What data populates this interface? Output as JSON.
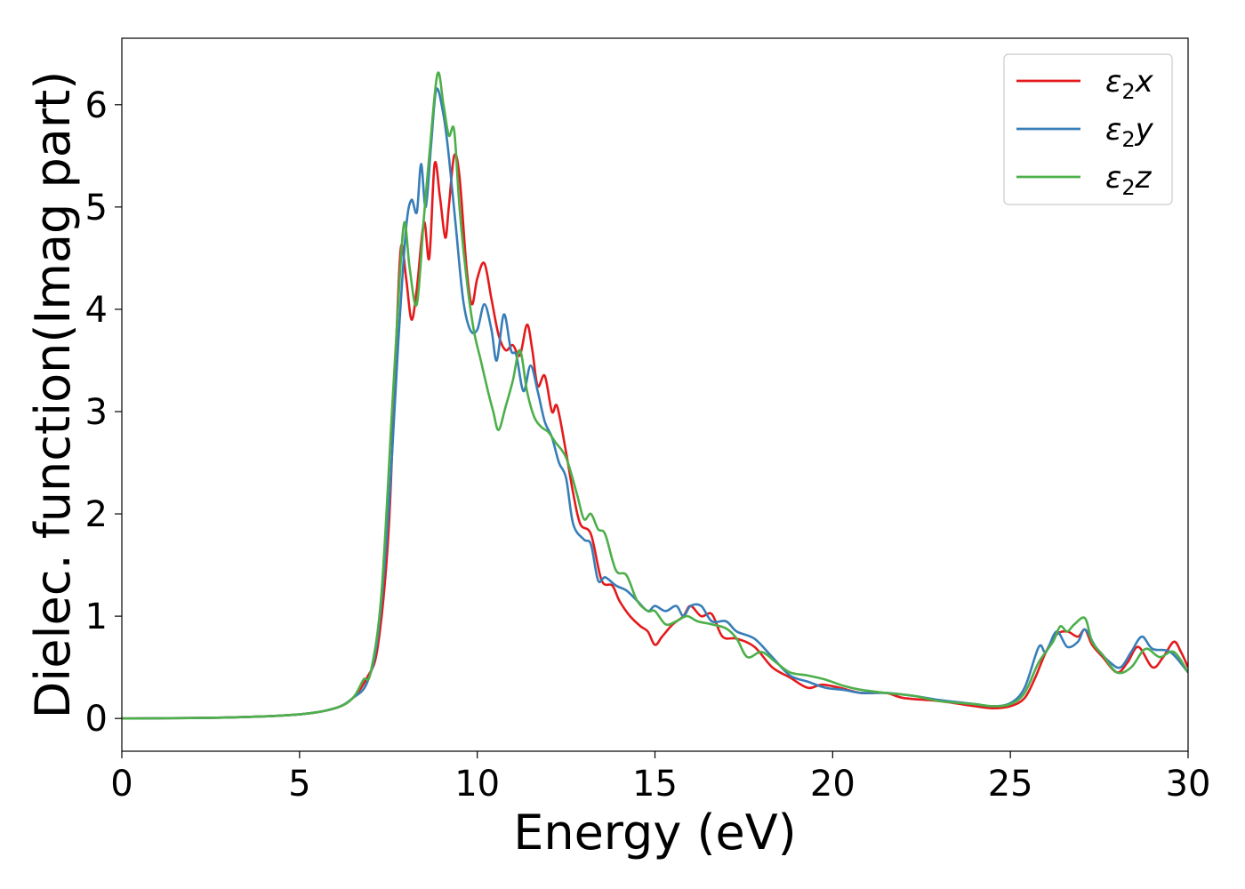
{
  "chart_data": {
    "type": "line",
    "xlabel": "Energy (eV)",
    "ylabel": "Dielec. function(Imag part)",
    "xlim": [
      0,
      30
    ],
    "ylim": [
      -0.32,
      6.65
    ],
    "xticks": [
      0,
      5,
      10,
      15,
      20,
      25,
      30
    ],
    "yticks": [
      0,
      1,
      2,
      3,
      4,
      5,
      6
    ],
    "legend_position": "top-right",
    "grid": false,
    "series": [
      {
        "name": "ε2x",
        "legend_base": "ε",
        "legend_sub": "2",
        "legend_suffix": "x",
        "color": "#e41a1c",
        "points": [
          [
            0,
            0
          ],
          [
            3,
            0.01
          ],
          [
            5,
            0.04
          ],
          [
            6,
            0.1
          ],
          [
            6.5,
            0.2
          ],
          [
            6.9,
            0.4
          ],
          [
            7.2,
            0.7
          ],
          [
            7.5,
            1.8
          ],
          [
            7.7,
            3.5
          ],
          [
            7.85,
            4.6
          ],
          [
            8.0,
            4.3
          ],
          [
            8.15,
            3.9
          ],
          [
            8.3,
            4.2
          ],
          [
            8.5,
            4.85
          ],
          [
            8.65,
            4.5
          ],
          [
            8.8,
            5.42
          ],
          [
            8.95,
            5.1
          ],
          [
            9.1,
            4.7
          ],
          [
            9.2,
            5.0
          ],
          [
            9.35,
            5.5
          ],
          [
            9.5,
            5.3
          ],
          [
            9.7,
            4.4
          ],
          [
            9.85,
            4.05
          ],
          [
            10.0,
            4.3
          ],
          [
            10.2,
            4.45
          ],
          [
            10.4,
            4.1
          ],
          [
            10.6,
            3.75
          ],
          [
            10.8,
            3.6
          ],
          [
            11.0,
            3.65
          ],
          [
            11.2,
            3.55
          ],
          [
            11.4,
            3.85
          ],
          [
            11.55,
            3.6
          ],
          [
            11.7,
            3.25
          ],
          [
            11.9,
            3.35
          ],
          [
            12.1,
            3.0
          ],
          [
            12.25,
            3.05
          ],
          [
            12.5,
            2.6
          ],
          [
            12.7,
            2.2
          ],
          [
            12.9,
            1.9
          ],
          [
            13.2,
            1.8
          ],
          [
            13.5,
            1.35
          ],
          [
            13.8,
            1.3
          ],
          [
            14.0,
            1.15
          ],
          [
            14.3,
            1.0
          ],
          [
            14.6,
            0.9
          ],
          [
            14.8,
            0.85
          ],
          [
            15.0,
            0.72
          ],
          [
            15.2,
            0.8
          ],
          [
            15.5,
            0.92
          ],
          [
            15.8,
            1.0
          ],
          [
            16.0,
            1.1
          ],
          [
            16.3,
            1.0
          ],
          [
            16.6,
            1.02
          ],
          [
            16.9,
            0.8
          ],
          [
            17.3,
            0.78
          ],
          [
            17.8,
            0.7
          ],
          [
            18.3,
            0.5
          ],
          [
            18.8,
            0.4
          ],
          [
            19.3,
            0.3
          ],
          [
            19.7,
            0.33
          ],
          [
            20.2,
            0.3
          ],
          [
            20.8,
            0.25
          ],
          [
            21.5,
            0.25
          ],
          [
            22,
            0.2
          ],
          [
            23,
            0.17
          ],
          [
            24,
            0.12
          ],
          [
            24.5,
            0.1
          ],
          [
            25,
            0.12
          ],
          [
            25.4,
            0.2
          ],
          [
            25.7,
            0.4
          ],
          [
            26.0,
            0.65
          ],
          [
            26.3,
            0.82
          ],
          [
            26.6,
            0.85
          ],
          [
            26.9,
            0.8
          ],
          [
            27.1,
            0.87
          ],
          [
            27.3,
            0.72
          ],
          [
            27.6,
            0.6
          ],
          [
            28.0,
            0.45
          ],
          [
            28.3,
            0.55
          ],
          [
            28.6,
            0.7
          ],
          [
            29.0,
            0.5
          ],
          [
            29.3,
            0.6
          ],
          [
            29.6,
            0.75
          ],
          [
            29.8,
            0.65
          ],
          [
            30,
            0.5
          ]
        ]
      },
      {
        "name": "ε2y",
        "legend_base": "ε",
        "legend_sub": "2",
        "legend_suffix": "y",
        "color": "#377eb8",
        "points": [
          [
            0,
            0
          ],
          [
            3,
            0.01
          ],
          [
            5,
            0.04
          ],
          [
            6,
            0.1
          ],
          [
            6.5,
            0.2
          ],
          [
            6.9,
            0.35
          ],
          [
            7.2,
            0.8
          ],
          [
            7.5,
            2.0
          ],
          [
            7.8,
            3.8
          ],
          [
            8.0,
            4.8
          ],
          [
            8.15,
            5.07
          ],
          [
            8.3,
            4.95
          ],
          [
            8.42,
            5.42
          ],
          [
            8.55,
            5.0
          ],
          [
            8.7,
            5.6
          ],
          [
            8.85,
            6.15
          ],
          [
            9.05,
            5.9
          ],
          [
            9.2,
            5.5
          ],
          [
            9.4,
            4.8
          ],
          [
            9.6,
            4.1
          ],
          [
            9.8,
            3.8
          ],
          [
            10.0,
            3.8
          ],
          [
            10.2,
            4.05
          ],
          [
            10.4,
            3.8
          ],
          [
            10.55,
            3.5
          ],
          [
            10.75,
            3.95
          ],
          [
            10.95,
            3.6
          ],
          [
            11.1,
            3.55
          ],
          [
            11.3,
            3.2
          ],
          [
            11.5,
            3.45
          ],
          [
            11.7,
            3.2
          ],
          [
            11.9,
            2.9
          ],
          [
            12.1,
            2.75
          ],
          [
            12.3,
            2.5
          ],
          [
            12.5,
            2.35
          ],
          [
            12.7,
            1.9
          ],
          [
            13.0,
            1.75
          ],
          [
            13.2,
            1.7
          ],
          [
            13.4,
            1.35
          ],
          [
            13.6,
            1.38
          ],
          [
            13.9,
            1.3
          ],
          [
            14.2,
            1.25
          ],
          [
            14.5,
            1.15
          ],
          [
            14.8,
            1.05
          ],
          [
            15.0,
            1.1
          ],
          [
            15.3,
            1.05
          ],
          [
            15.6,
            1.1
          ],
          [
            15.8,
            1.0
          ],
          [
            16.0,
            1.1
          ],
          [
            16.3,
            1.1
          ],
          [
            16.6,
            0.95
          ],
          [
            17.0,
            0.95
          ],
          [
            17.3,
            0.85
          ],
          [
            17.8,
            0.78
          ],
          [
            18.3,
            0.6
          ],
          [
            18.8,
            0.42
          ],
          [
            19.3,
            0.36
          ],
          [
            19.8,
            0.3
          ],
          [
            20.3,
            0.28
          ],
          [
            20.8,
            0.25
          ],
          [
            21.5,
            0.25
          ],
          [
            22.3,
            0.22
          ],
          [
            23,
            0.18
          ],
          [
            24,
            0.14
          ],
          [
            24.5,
            0.12
          ],
          [
            25,
            0.15
          ],
          [
            25.4,
            0.3
          ],
          [
            25.8,
            0.7
          ],
          [
            26.0,
            0.65
          ],
          [
            26.3,
            0.85
          ],
          [
            26.6,
            0.7
          ],
          [
            26.9,
            0.75
          ],
          [
            27.1,
            0.87
          ],
          [
            27.4,
            0.7
          ],
          [
            27.8,
            0.55
          ],
          [
            28.1,
            0.5
          ],
          [
            28.4,
            0.65
          ],
          [
            28.7,
            0.8
          ],
          [
            29.0,
            0.68
          ],
          [
            29.5,
            0.65
          ],
          [
            30,
            0.45
          ]
        ]
      },
      {
        "name": "ε2z",
        "legend_base": "ε",
        "legend_sub": "2",
        "legend_suffix": "z",
        "color": "#4daf4a",
        "points": [
          [
            0,
            0
          ],
          [
            3,
            0.01
          ],
          [
            5,
            0.04
          ],
          [
            6,
            0.1
          ],
          [
            6.5,
            0.2
          ],
          [
            6.8,
            0.38
          ],
          [
            7.0,
            0.45
          ],
          [
            7.3,
            1.2
          ],
          [
            7.6,
            3.0
          ],
          [
            7.8,
            4.2
          ],
          [
            7.95,
            4.85
          ],
          [
            8.1,
            4.4
          ],
          [
            8.3,
            4.05
          ],
          [
            8.5,
            4.9
          ],
          [
            8.65,
            5.5
          ],
          [
            8.88,
            6.3
          ],
          [
            9.05,
            6.0
          ],
          [
            9.2,
            5.7
          ],
          [
            9.35,
            5.75
          ],
          [
            9.5,
            5.0
          ],
          [
            9.7,
            4.3
          ],
          [
            9.9,
            3.8
          ],
          [
            10.1,
            3.5
          ],
          [
            10.3,
            3.2
          ],
          [
            10.45,
            3.0
          ],
          [
            10.6,
            2.82
          ],
          [
            10.8,
            3.05
          ],
          [
            11.0,
            3.3
          ],
          [
            11.2,
            3.6
          ],
          [
            11.4,
            3.2
          ],
          [
            11.6,
            2.95
          ],
          [
            11.8,
            2.85
          ],
          [
            12.0,
            2.8
          ],
          [
            12.2,
            2.7
          ],
          [
            12.5,
            2.55
          ],
          [
            12.8,
            2.2
          ],
          [
            13.0,
            1.95
          ],
          [
            13.2,
            2.0
          ],
          [
            13.4,
            1.85
          ],
          [
            13.6,
            1.8
          ],
          [
            13.9,
            1.45
          ],
          [
            14.2,
            1.4
          ],
          [
            14.5,
            1.15
          ],
          [
            14.8,
            1.05
          ],
          [
            15.0,
            1.05
          ],
          [
            15.3,
            0.92
          ],
          [
            15.6,
            0.95
          ],
          [
            15.9,
            1.0
          ],
          [
            16.2,
            0.95
          ],
          [
            16.6,
            0.92
          ],
          [
            17.0,
            0.88
          ],
          [
            17.3,
            0.78
          ],
          [
            17.6,
            0.6
          ],
          [
            18.0,
            0.65
          ],
          [
            18.4,
            0.55
          ],
          [
            18.8,
            0.45
          ],
          [
            19.3,
            0.42
          ],
          [
            19.8,
            0.38
          ],
          [
            20.3,
            0.32
          ],
          [
            20.8,
            0.28
          ],
          [
            21.5,
            0.25
          ],
          [
            22.3,
            0.22
          ],
          [
            23,
            0.17
          ],
          [
            24,
            0.14
          ],
          [
            24.5,
            0.12
          ],
          [
            25,
            0.14
          ],
          [
            25.4,
            0.25
          ],
          [
            25.8,
            0.55
          ],
          [
            26.2,
            0.75
          ],
          [
            26.4,
            0.9
          ],
          [
            26.6,
            0.85
          ],
          [
            26.8,
            0.92
          ],
          [
            27.1,
            0.98
          ],
          [
            27.3,
            0.75
          ],
          [
            27.6,
            0.62
          ],
          [
            28.0,
            0.45
          ],
          [
            28.4,
            0.5
          ],
          [
            28.8,
            0.68
          ],
          [
            29.2,
            0.6
          ],
          [
            29.6,
            0.65
          ],
          [
            30,
            0.45
          ]
        ]
      }
    ]
  }
}
